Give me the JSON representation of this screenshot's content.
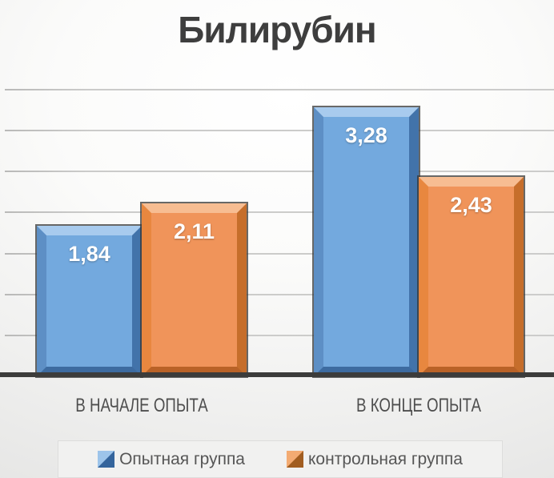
{
  "chart_data": {
    "type": "bar",
    "title": "Билирубин",
    "categories": [
      "В НАЧАЛЕ ОПЫТА",
      "В КОНЦЕ ОПЫТА"
    ],
    "series": [
      {
        "name": "Опытная группа",
        "color": "#73A9DE",
        "values": [
          1.84,
          3.28
        ],
        "labels": [
          "1,84",
          "3,28"
        ]
      },
      {
        "name": "контрольная группа",
        "color": "#F0945A",
        "values": [
          2.11,
          2.43
        ],
        "labels": [
          "2,11",
          "2,43"
        ]
      }
    ],
    "ylim": [
      0,
      3.5
    ],
    "gridline_step": 0.5,
    "grid": true,
    "legend_position": "bottom",
    "value_label_color": "#FFFFFF",
    "colors": {
      "title_text": "#3E3E3E",
      "category_text": "#4E4E4E",
      "legend_text": "#565656",
      "gridline": "#CCCCCB",
      "baseline": "#3C3C3B"
    }
  }
}
